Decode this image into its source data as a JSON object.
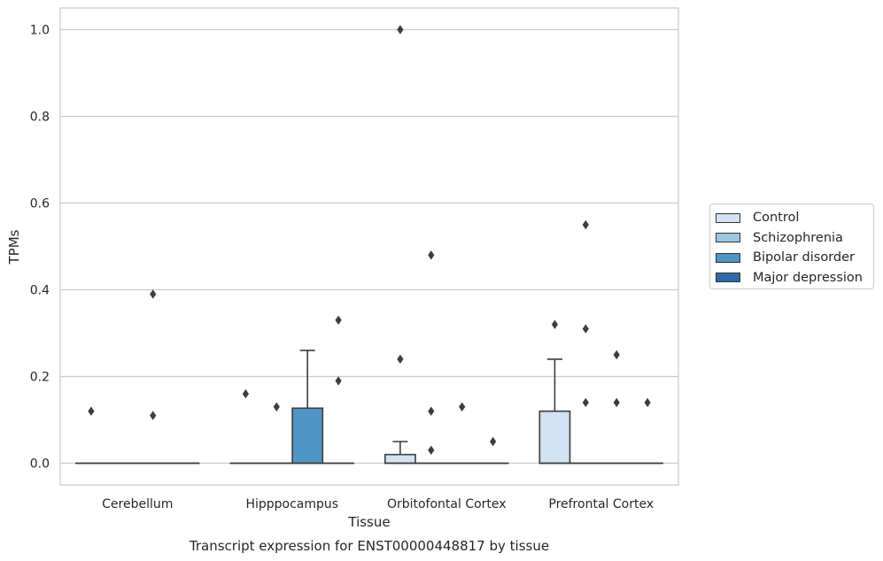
{
  "chart_data": {
    "type": "box",
    "caption": "Transcript expression for ENST00000448817 by tissue",
    "xlabel": "Tissue",
    "ylabel": "TPMs",
    "ylim": [
      -0.05,
      1.05
    ],
    "yticks": [
      0.0,
      0.2,
      0.4,
      0.6,
      0.8,
      1.0
    ],
    "ytick_labels": [
      "0.0",
      "0.2",
      "0.4",
      "0.6",
      "0.8",
      "1.0"
    ],
    "categories": [
      "Cerebellum",
      "Hipppocampus",
      "Orbitofontal Cortex",
      "Prefrontal Cortex"
    ],
    "grid": "horizontal",
    "legend_position": "right",
    "series": [
      {
        "name": "Control",
        "color": "#d2e2f2",
        "boxes": [
          {
            "q1": 0,
            "median": 0,
            "q3": 0,
            "whislo": 0,
            "whishi": 0,
            "fliers": [
              0.12
            ]
          },
          {
            "q1": 0,
            "median": 0,
            "q3": 0,
            "whislo": 0,
            "whishi": 0,
            "fliers": [
              0.16
            ]
          },
          {
            "q1": 0,
            "median": 0,
            "q3": 0.02,
            "whislo": 0,
            "whishi": 0.05,
            "fliers": [
              1.0,
              0.24
            ]
          },
          {
            "q1": 0,
            "median": 0,
            "q3": 0.12,
            "whislo": 0,
            "whishi": 0.24,
            "fliers": [
              0.32
            ]
          }
        ]
      },
      {
        "name": "Schizophrenia",
        "color": "#9ac8e0",
        "boxes": [
          {
            "q1": 0,
            "median": 0,
            "q3": 0,
            "whislo": 0,
            "whishi": 0,
            "fliers": []
          },
          {
            "q1": 0,
            "median": 0,
            "q3": 0,
            "whislo": 0,
            "whishi": 0,
            "fliers": [
              0.13
            ]
          },
          {
            "q1": 0,
            "median": 0,
            "q3": 0,
            "whislo": 0,
            "whishi": 0,
            "fliers": [
              0.48,
              0.12,
              0.03
            ]
          },
          {
            "q1": 0,
            "median": 0,
            "q3": 0,
            "whislo": 0,
            "whishi": 0,
            "fliers": [
              0.55,
              0.31,
              0.14
            ]
          }
        ]
      },
      {
        "name": "Bipolar disorder",
        "color": "#5096c5",
        "boxes": [
          {
            "q1": 0,
            "median": 0,
            "q3": 0,
            "whislo": 0,
            "whishi": 0,
            "fliers": [
              0.39,
              0.11
            ]
          },
          {
            "q1": 0,
            "median": 0,
            "q3": 0.127,
            "whislo": 0,
            "whishi": 0.26,
            "fliers": []
          },
          {
            "q1": 0,
            "median": 0,
            "q3": 0,
            "whislo": 0,
            "whishi": 0,
            "fliers": [
              0.13
            ]
          },
          {
            "q1": 0,
            "median": 0,
            "q3": 0,
            "whislo": 0,
            "whishi": 0,
            "fliers": [
              0.25,
              0.14
            ]
          }
        ]
      },
      {
        "name": "Major depression",
        "color": "#2c6aa8",
        "boxes": [
          {
            "q1": 0,
            "median": 0,
            "q3": 0,
            "whislo": 0,
            "whishi": 0,
            "fliers": []
          },
          {
            "q1": 0,
            "median": 0,
            "q3": 0,
            "whislo": 0,
            "whishi": 0,
            "fliers": [
              0.33,
              0.19
            ]
          },
          {
            "q1": 0,
            "median": 0,
            "q3": 0,
            "whislo": 0,
            "whishi": 0,
            "fliers": [
              0.05
            ]
          },
          {
            "q1": 0,
            "median": 0,
            "q3": 0,
            "whislo": 0,
            "whishi": 0,
            "fliers": [
              0.14
            ]
          }
        ]
      }
    ]
  }
}
